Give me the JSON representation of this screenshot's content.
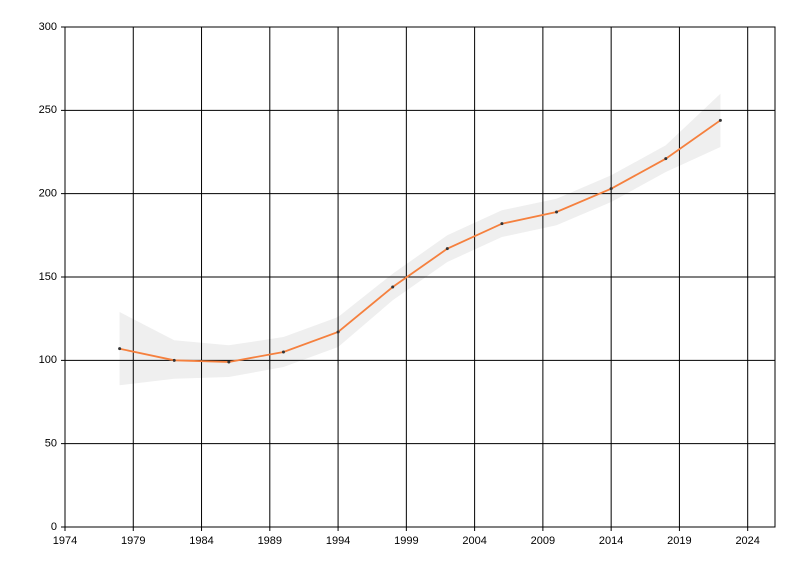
{
  "chart_data": {
    "type": "line",
    "x": [
      1978,
      1982,
      1986,
      1990,
      1994,
      1998,
      2002,
      2006,
      2010,
      2014,
      2018,
      2022
    ],
    "series": [
      {
        "color": "#f5803e",
        "values": [
          107,
          100,
          99,
          105,
          117,
          144,
          167,
          182,
          189,
          203,
          221,
          244
        ]
      }
    ],
    "band": {
      "color": "#efefef",
      "upper": [
        129,
        112,
        109,
        114,
        126,
        152,
        175,
        190,
        197,
        211,
        229,
        260
      ],
      "lower": [
        85,
        89,
        90,
        96,
        108,
        136,
        159,
        174,
        181,
        195,
        213,
        228
      ]
    },
    "marker_color": "#333333",
    "xlim": [
      1974,
      2026
    ],
    "xticks": [
      1974,
      1979,
      1984,
      1989,
      1994,
      1999,
      2004,
      2009,
      2014,
      2019,
      2024
    ],
    "ylim": [
      0,
      300
    ],
    "yticks": [
      0,
      50,
      100,
      150,
      200,
      250,
      300
    ],
    "grid": true
  }
}
